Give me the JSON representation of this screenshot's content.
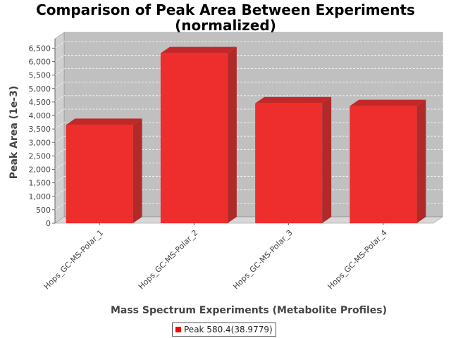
{
  "chart_data": {
    "type": "bar",
    "title": [
      "Comparison of Peak Area Between Experiments",
      "(normalized)"
    ],
    "xlabel": "Mass Spectrum Experiments (Metabolite Profiles)",
    "ylabel": "Peak Area (1e-3)",
    "categories": [
      "Hops_GC-MS-Polar_1",
      "Hops_GC-MS-Polar_2",
      "Hops_GC-MS-Polar_3",
      "Hops_GC-MS-Polar_4"
    ],
    "series": [
      {
        "name": "Peak 580.4(38.9779)",
        "values": [
          3650,
          6310,
          4450,
          4350
        ]
      }
    ],
    "ylim": [
      0,
      6500
    ],
    "yticks": [
      0,
      500,
      1000,
      1500,
      2000,
      2500,
      3000,
      3500,
      4000,
      4500,
      5000,
      5500,
      6000,
      6500
    ],
    "ytick_labels": [
      "0",
      "500",
      "1,000",
      "1,500",
      "2,000",
      "2,500",
      "3,000",
      "3,500",
      "4,000",
      "4,500",
      "5,000",
      "5,500",
      "6,000",
      "6,500"
    ],
    "grid": true,
    "legend_position": "bottom-center",
    "colors": {
      "bar_front": "#ee2d2d",
      "bar_side": "#b02a2a",
      "bar_top": "#c22828",
      "plot_back": "#c0c0c0",
      "plot_floor": "#d8d8d8",
      "plot_side": "#d0d0d0",
      "legend_swatch": "#ff0000"
    }
  }
}
